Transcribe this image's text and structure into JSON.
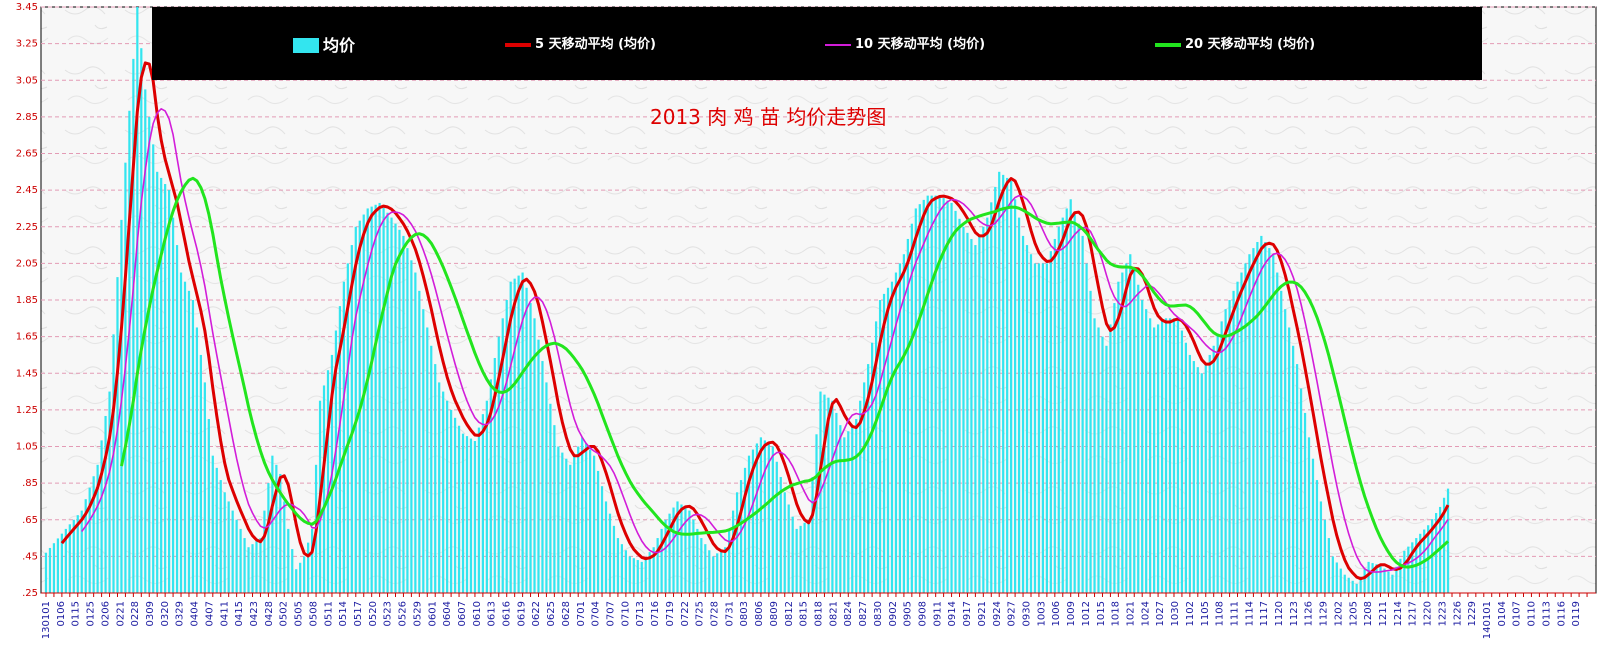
{
  "chart_data": {
    "type": "bar",
    "title": "2013 肉 鸡 苗 均价走势图",
    "ylim": [
      0.25,
      3.45
    ],
    "yticks": [
      0.25,
      0.45,
      0.65,
      0.85,
      1.05,
      1.25,
      1.45,
      1.65,
      1.85,
      2.05,
      2.25,
      2.45,
      2.65,
      2.85,
      3.05,
      3.25,
      3.45
    ],
    "ytick_labels": [
      ".25",
      ".45",
      ".65",
      ".85",
      "1.05",
      "1.25",
      "1.45",
      "1.65",
      "1.85",
      "2.05",
      "2.25",
      "2.45",
      "2.65",
      "2.85",
      "3.05",
      "3.25",
      "3.45"
    ],
    "grid": true,
    "legend_position": "top",
    "colors": {
      "bars": "#33e5ef",
      "ma5": "#dd0000",
      "ma10": "#d21dd9",
      "ma20": "#22e51e",
      "grid": "#e39bb5",
      "legend_bg": "#000000",
      "tick": "#cc0000",
      "xtick": "#1a1aa0"
    },
    "x_tick_labels": [
      "130101",
      "0106",
      "0115",
      "0125",
      "0206",
      "0221",
      "0228",
      "0309",
      "0320",
      "0329",
      "0404",
      "0407",
      "0411",
      "0415",
      "0423",
      "0428",
      "0502",
      "0505",
      "0508",
      "0511",
      "0514",
      "0517",
      "0520",
      "0523",
      "0526",
      "0529",
      "0601",
      "0604",
      "0607",
      "0610",
      "0613",
      "0616",
      "0619",
      "0622",
      "0625",
      "0628",
      "0701",
      "0704",
      "0707",
      "0710",
      "0713",
      "0716",
      "0719",
      "0722",
      "0725",
      "0728",
      "0731",
      "0803",
      "0806",
      "0809",
      "0812",
      "0815",
      "0818",
      "0821",
      "0824",
      "0827",
      "0830",
      "0902",
      "0905",
      "0908",
      "0911",
      "0914",
      "0917",
      "0921",
      "0924",
      "0927",
      "0930",
      "1003",
      "1006",
      "1009",
      "1012",
      "1015",
      "1018",
      "1021",
      "1024",
      "1027",
      "1030",
      "1102",
      "1105",
      "1108",
      "1111",
      "1114",
      "1117",
      "1120",
      "1123",
      "1126",
      "1129",
      "1202",
      "1205",
      "1208",
      "1211",
      "1214",
      "1217",
      "1220",
      "1223",
      "1226",
      "1229",
      "140101",
      "0104",
      "0107",
      "0110",
      "0113",
      "0116",
      "0119"
    ],
    "daily_keyframes": [
      [
        0,
        0.47
      ],
      [
        5,
        0.6
      ],
      [
        9,
        0.7
      ],
      [
        13,
        0.95
      ],
      [
        16,
        1.35
      ],
      [
        20,
        2.6
      ],
      [
        23,
        3.45
      ],
      [
        25,
        3.0
      ],
      [
        28,
        2.55
      ],
      [
        31,
        2.45
      ],
      [
        34,
        2.0
      ],
      [
        37,
        1.85
      ],
      [
        40,
        1.4
      ],
      [
        42,
        1.0
      ],
      [
        45,
        0.8
      ],
      [
        48,
        0.65
      ],
      [
        51,
        0.5
      ],
      [
        54,
        0.55
      ],
      [
        57,
        1.0
      ],
      [
        59,
        0.9
      ],
      [
        61,
        0.6
      ],
      [
        63,
        0.38
      ],
      [
        65,
        0.45
      ],
      [
        67,
        0.6
      ],
      [
        69,
        1.3
      ],
      [
        72,
        1.55
      ],
      [
        75,
        1.95
      ],
      [
        78,
        2.25
      ],
      [
        81,
        2.35
      ],
      [
        84,
        2.38
      ],
      [
        87,
        2.3
      ],
      [
        90,
        2.2
      ],
      [
        93,
        2.0
      ],
      [
        96,
        1.7
      ],
      [
        99,
        1.4
      ],
      [
        102,
        1.25
      ],
      [
        105,
        1.12
      ],
      [
        108,
        1.08
      ],
      [
        111,
        1.3
      ],
      [
        114,
        1.65
      ],
      [
        117,
        1.95
      ],
      [
        120,
        2.0
      ],
      [
        123,
        1.75
      ],
      [
        126,
        1.4
      ],
      [
        129,
        1.05
      ],
      [
        132,
        0.95
      ],
      [
        135,
        1.1
      ],
      [
        138,
        1.0
      ],
      [
        141,
        0.75
      ],
      [
        144,
        0.55
      ],
      [
        147,
        0.45
      ],
      [
        150,
        0.42
      ],
      [
        153,
        0.5
      ],
      [
        156,
        0.65
      ],
      [
        159,
        0.75
      ],
      [
        162,
        0.7
      ],
      [
        165,
        0.55
      ],
      [
        168,
        0.45
      ],
      [
        171,
        0.5
      ],
      [
        174,
        0.8
      ],
      [
        177,
        1.0
      ],
      [
        180,
        1.1
      ],
      [
        183,
        1.05
      ],
      [
        186,
        0.8
      ],
      [
        189,
        0.6
      ],
      [
        192,
        0.65
      ],
      [
        195,
        1.35
      ],
      [
        198,
        1.3
      ],
      [
        201,
        1.1
      ],
      [
        204,
        1.2
      ],
      [
        207,
        1.5
      ],
      [
        210,
        1.85
      ],
      [
        213,
        1.95
      ],
      [
        216,
        2.1
      ],
      [
        219,
        2.35
      ],
      [
        222,
        2.42
      ],
      [
        225,
        2.42
      ],
      [
        228,
        2.38
      ],
      [
        231,
        2.25
      ],
      [
        234,
        2.15
      ],
      [
        237,
        2.3
      ],
      [
        240,
        2.55
      ],
      [
        243,
        2.5
      ],
      [
        246,
        2.2
      ],
      [
        249,
        2.05
      ],
      [
        252,
        2.05
      ],
      [
        255,
        2.25
      ],
      [
        258,
        2.4
      ],
      [
        261,
        2.2
      ],
      [
        264,
        1.75
      ],
      [
        267,
        1.6
      ],
      [
        270,
        1.95
      ],
      [
        273,
        2.1
      ],
      [
        276,
        1.85
      ],
      [
        279,
        1.7
      ],
      [
        282,
        1.75
      ],
      [
        285,
        1.75
      ],
      [
        288,
        1.55
      ],
      [
        291,
        1.45
      ],
      [
        294,
        1.6
      ],
      [
        297,
        1.8
      ],
      [
        300,
        1.95
      ],
      [
        303,
        2.1
      ],
      [
        306,
        2.2
      ],
      [
        309,
        2.1
      ],
      [
        312,
        1.8
      ],
      [
        315,
        1.5
      ],
      [
        318,
        1.1
      ],
      [
        321,
        0.75
      ],
      [
        324,
        0.45
      ],
      [
        327,
        0.35
      ],
      [
        330,
        0.3
      ],
      [
        333,
        0.42
      ],
      [
        336,
        0.4
      ],
      [
        339,
        0.35
      ],
      [
        342,
        0.48
      ],
      [
        345,
        0.55
      ],
      [
        348,
        0.62
      ],
      [
        351,
        0.72
      ],
      [
        353,
        0.82
      ]
    ],
    "series": [
      {
        "name": "均价",
        "kind": "bar",
        "interval_days": 1
      },
      {
        "name": "5 天移动平均 (均价)",
        "kind": "line",
        "window": 5
      },
      {
        "name": "10 天移动平均 (均价)",
        "kind": "line",
        "window": 10
      },
      {
        "name": "20 天移动平均 (均价)",
        "kind": "line",
        "window": 20
      }
    ]
  }
}
